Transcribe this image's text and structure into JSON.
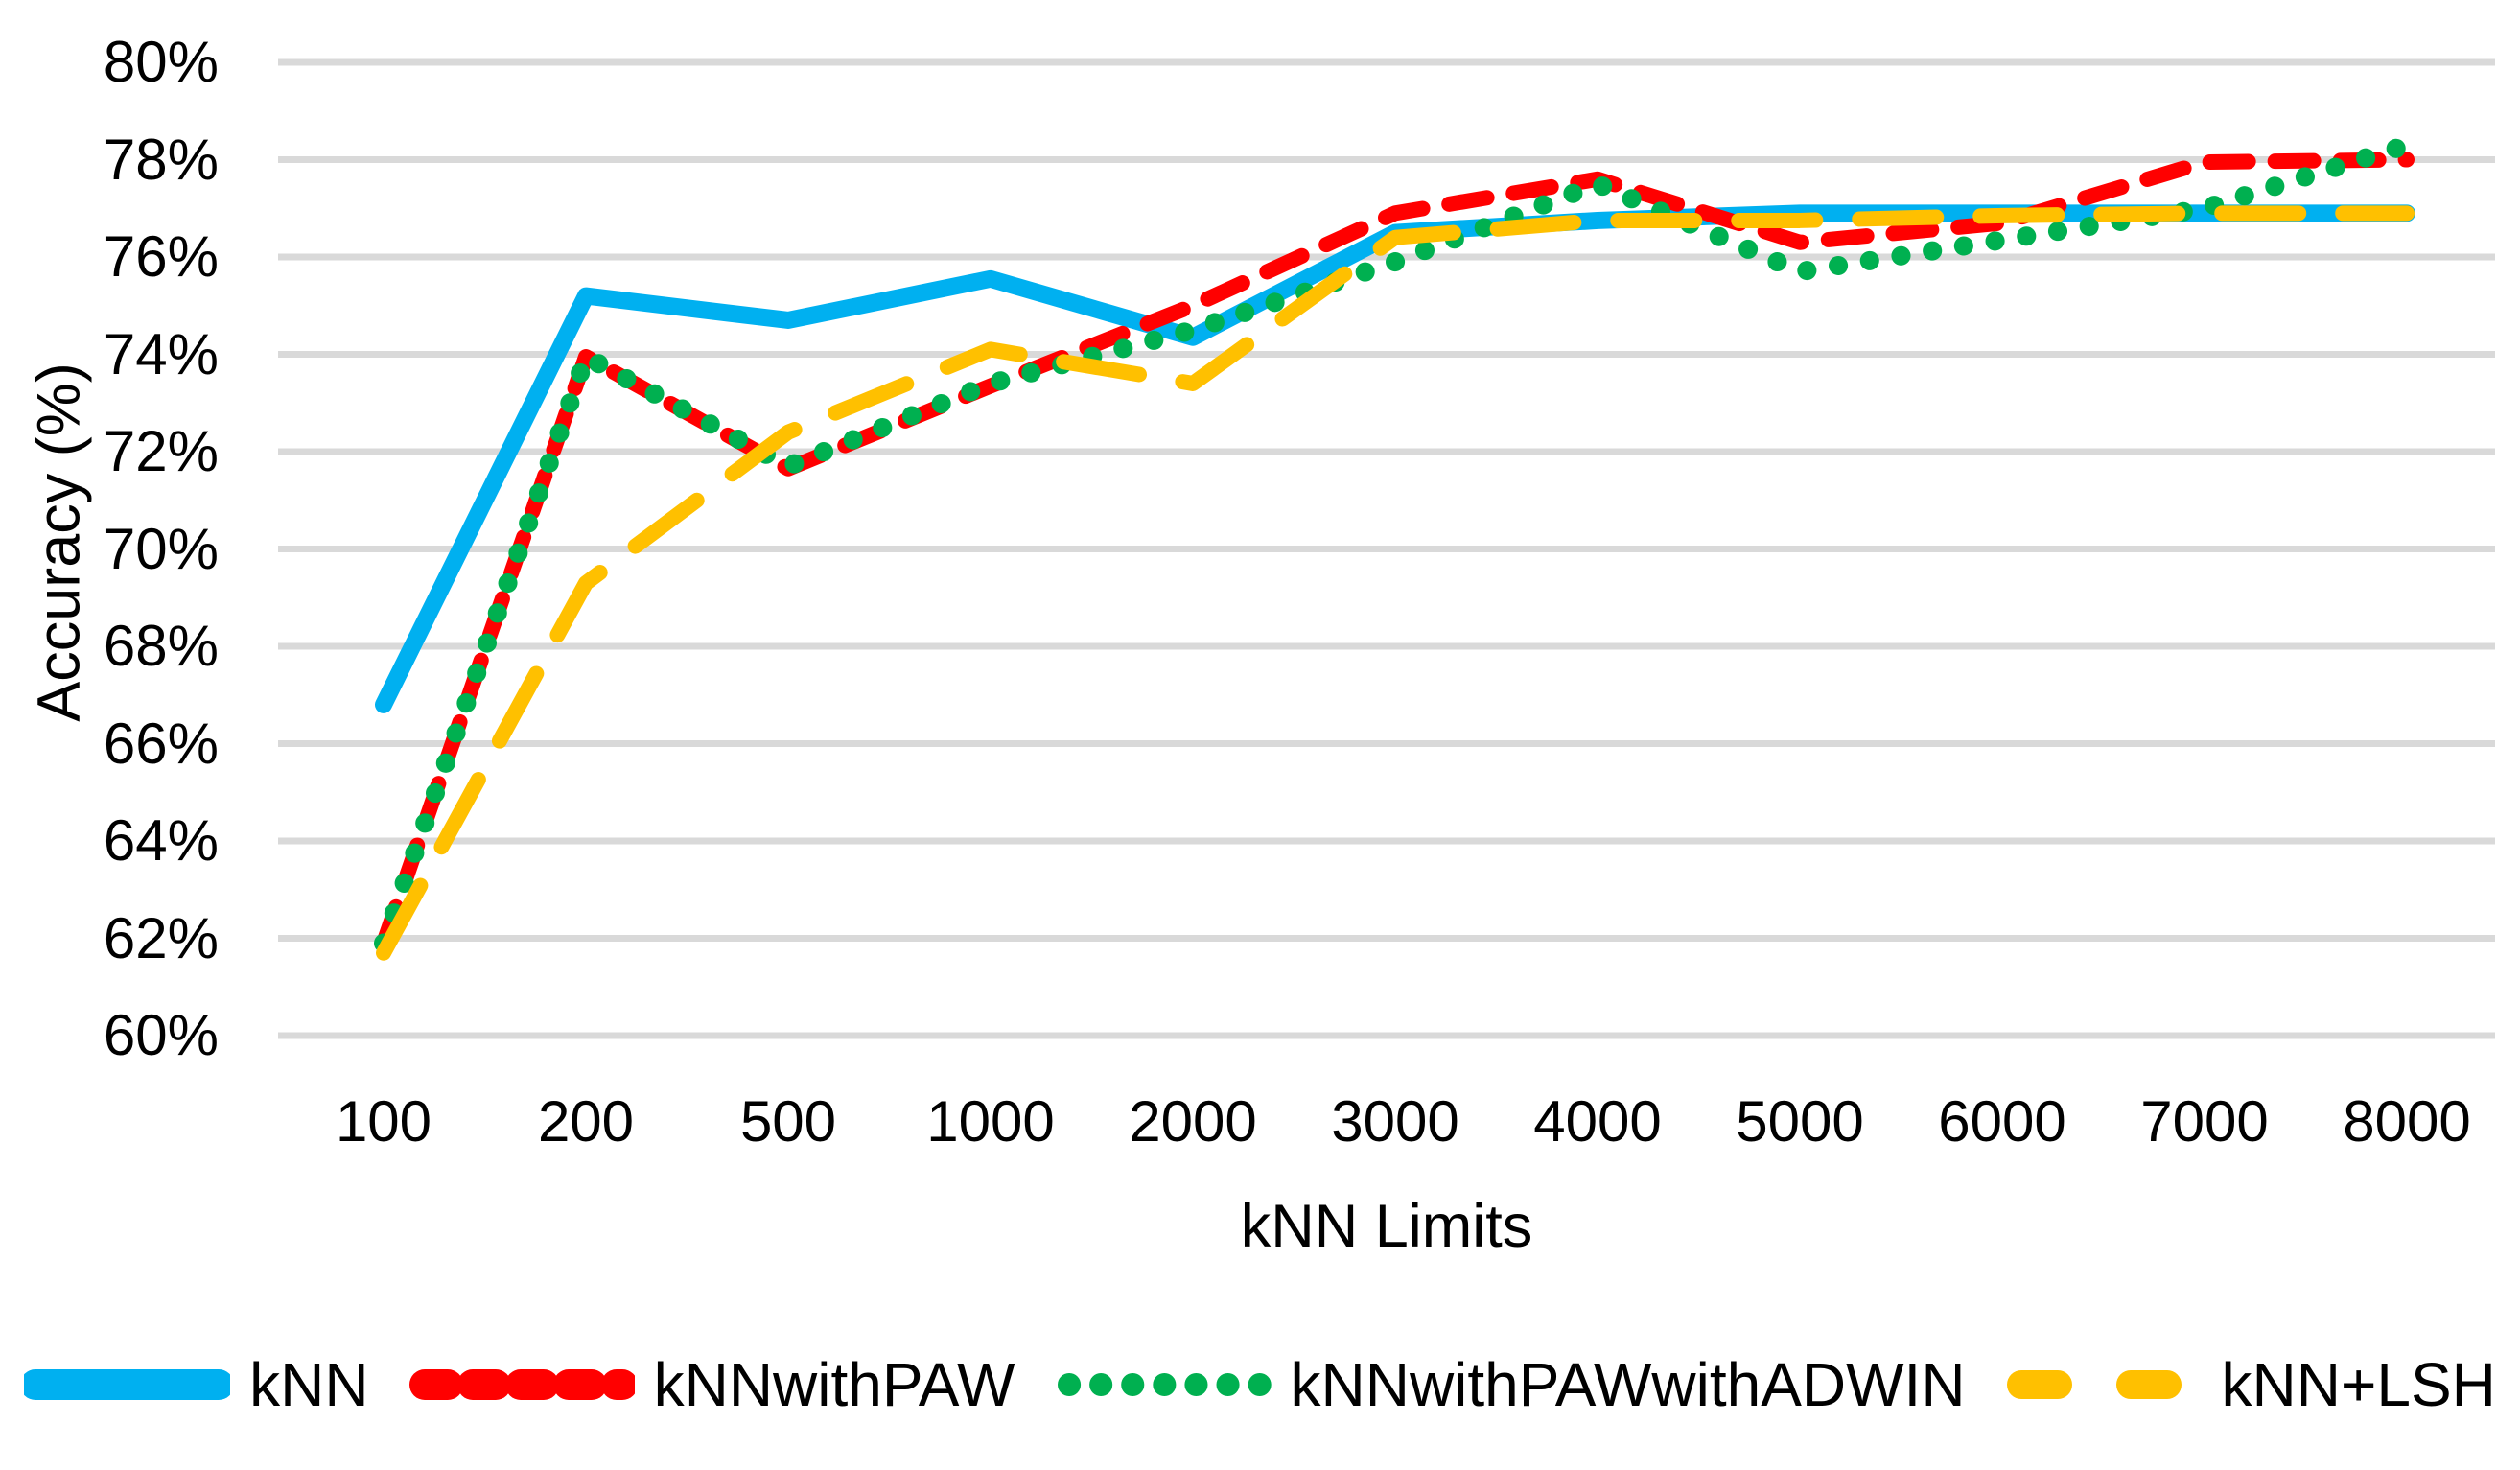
{
  "chart_data": {
    "type": "line",
    "title": "",
    "xlabel": "kNN Limits",
    "ylabel": "Accuracy (%)",
    "categories": [
      100,
      200,
      500,
      1000,
      2000,
      3000,
      4000,
      5000,
      6000,
      7000,
      8000
    ],
    "x_tick_labels": [
      "100",
      "200",
      "500",
      "1000",
      "2000",
      "3000",
      "4000",
      "5000",
      "6000",
      "7000",
      "8000"
    ],
    "y_axis": {
      "min": 60,
      "max": 80,
      "step": 2,
      "unit": "%"
    },
    "y_tick_labels": [
      "80%",
      "78%",
      "76%",
      "74%",
      "72%",
      "70%",
      "68%",
      "66%",
      "64%",
      "62%",
      "60%"
    ],
    "grid": true,
    "legend_position": "bottom",
    "series": [
      {
        "name": "kNN",
        "color": "#00B0F0",
        "style": "solid",
        "values": [
          66.8,
          75.2,
          74.7,
          75.55,
          74.35,
          76.5,
          76.75,
          76.9,
          76.9,
          76.9,
          76.9
        ]
      },
      {
        "name": "kNNwithPAW",
        "color": "#FF0000",
        "style": "dashed",
        "values": [
          61.9,
          73.95,
          71.65,
          73.35,
          75.0,
          76.9,
          77.6,
          76.3,
          76.7,
          77.95,
          78.0
        ]
      },
      {
        "name": "kNNwithPAWwithADWIN",
        "color": "#00B050",
        "style": "dotted",
        "values": [
          61.9,
          73.95,
          71.7,
          73.4,
          74.5,
          75.9,
          77.5,
          75.7,
          76.35,
          77.0,
          78.3
        ]
      },
      {
        "name": "kNN+LSH",
        "color": "#FFC000",
        "style": "long-dash",
        "values": [
          61.7,
          69.3,
          72.4,
          74.1,
          73.4,
          76.4,
          76.75,
          76.75,
          76.85,
          76.9,
          76.9
        ]
      }
    ],
    "colors": {
      "gridline": "#D9D9D9",
      "text": "#000000",
      "background": "#FFFFFF"
    }
  }
}
